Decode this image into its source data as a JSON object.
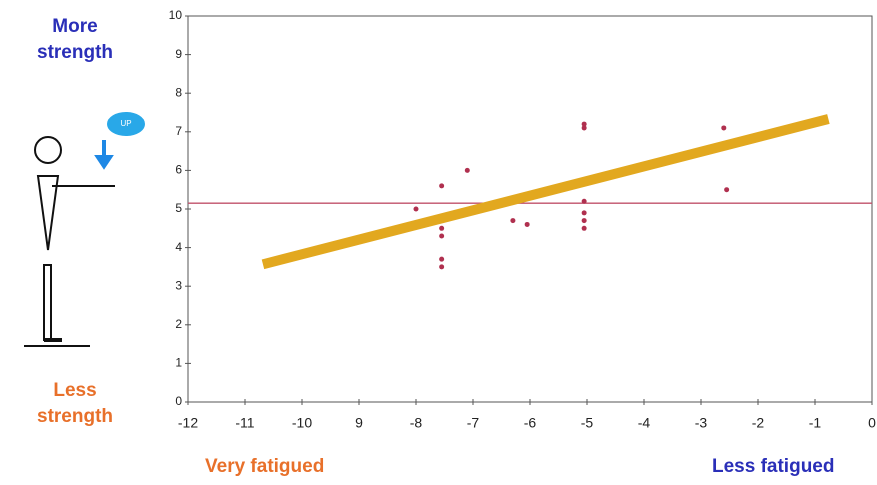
{
  "chart_data": {
    "type": "scatter",
    "top_label": "More strength",
    "bottom_label": "Less strength",
    "left_x_label": "Very fatigued",
    "right_x_label": "Less fatigued",
    "icon_label": "UP",
    "xlim": [
      -12,
      0
    ],
    "ylim": [
      0,
      10
    ],
    "xticks": [
      -12,
      -11,
      -10,
      {
        "value": -9,
        "label": "9"
      },
      -8,
      -7,
      -6,
      -5,
      -4,
      -3,
      -2,
      -1,
      0
    ],
    "yticks": [
      0,
      1,
      2,
      3,
      4,
      5,
      6,
      7,
      8,
      9,
      10
    ],
    "series": [
      {
        "color": "#b0304f",
        "x": [
          -8,
          -7.55,
          -7.55,
          -7.55,
          -7.55,
          -7.55,
          -7.1,
          -6.3,
          -6.05,
          -5.05,
          -5.05,
          -5.05,
          -5.05,
          -5.05,
          -5.05,
          -2.6,
          -2.55
        ],
        "values": [
          5.0,
          5.6,
          4.5,
          4.3,
          3.7,
          3.5,
          6.0,
          4.7,
          4.6,
          7.2,
          7.1,
          5.2,
          4.9,
          4.7,
          4.5,
          7.1,
          5.5
        ]
      }
    ],
    "reference_line": 5.15,
    "reference_color": "#c0506a",
    "fit_line": {
      "x": [
        -10.6,
        -0.85
      ],
      "values": [
        3.6,
        7.3
      ],
      "color": "#e2a81f"
    }
  }
}
